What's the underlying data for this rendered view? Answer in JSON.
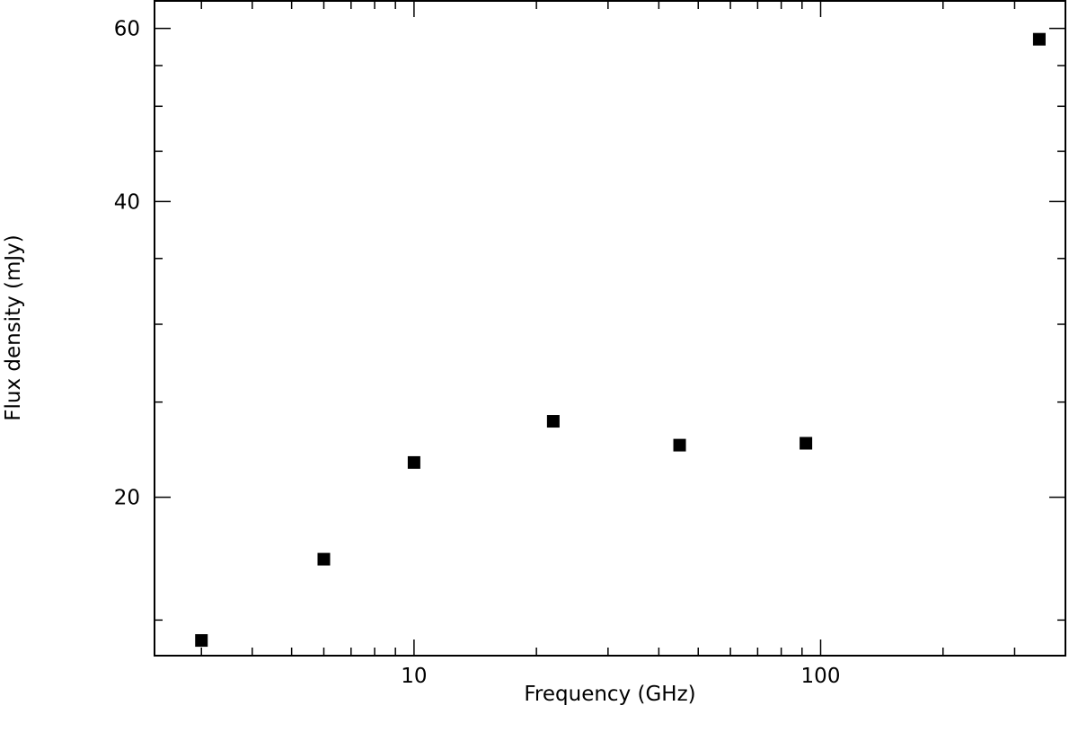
{
  "chart_data": {
    "type": "scatter",
    "title": "",
    "xlabel": "Frequency (GHz)",
    "ylabel": "Flux density (mJy)",
    "xscale": "log",
    "yscale": "log",
    "xlim": [
      2.3,
      400
    ],
    "ylim": [
      13.8,
      64
    ],
    "x_major_ticks": [
      10,
      100
    ],
    "x_tick_labels": [
      "10",
      "100"
    ],
    "y_major_ticks": [
      20,
      40,
      60
    ],
    "y_tick_labels": [
      "20",
      "40",
      "60"
    ],
    "grid": false,
    "legend": null,
    "marker": "filled-square",
    "marker_color": "#000000",
    "series": [
      {
        "x": [
          3.0,
          6.0,
          10.0,
          22.0,
          45.0,
          92.0,
          345.0
        ],
        "y": [
          14.3,
          17.3,
          21.7,
          23.9,
          22.6,
          22.7,
          58.5
        ]
      }
    ]
  }
}
